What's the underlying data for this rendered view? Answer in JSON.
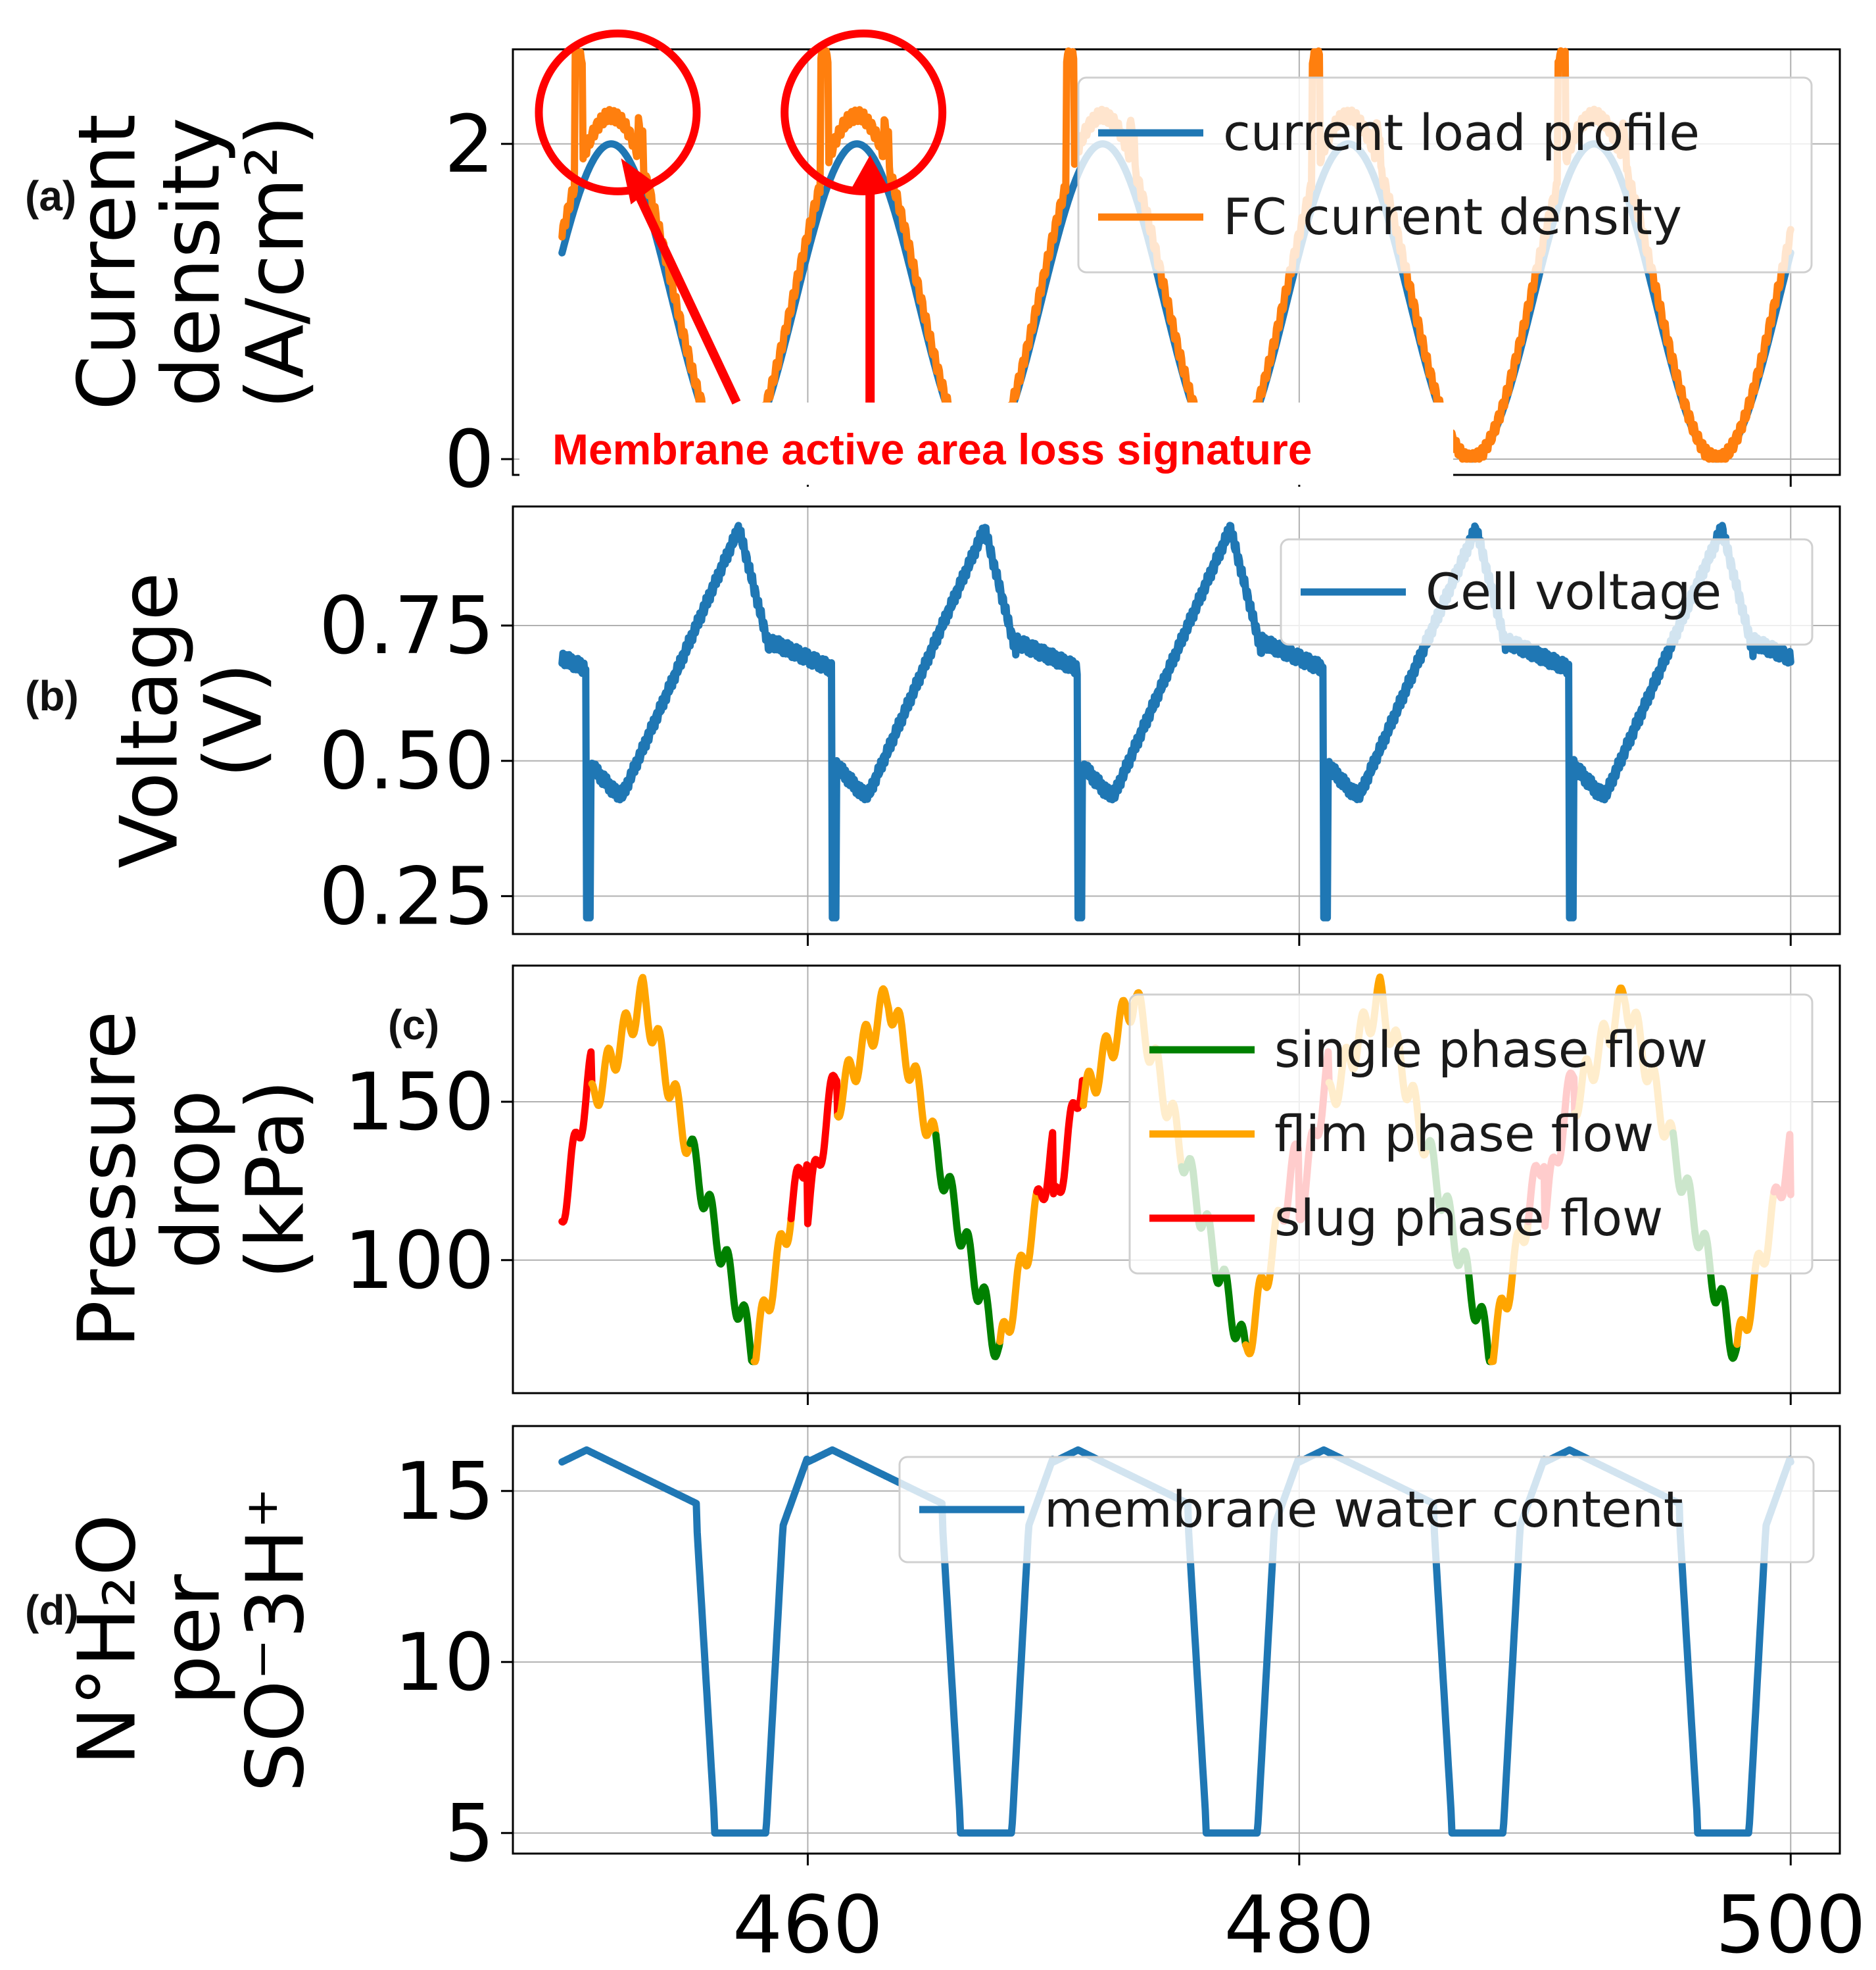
{
  "chart_data": [
    {
      "panel_label": "(a)",
      "type": "line",
      "ylabel": [
        "Current",
        "density",
        "(A/cm²)"
      ],
      "xlim": [
        448,
        502
      ],
      "ylim": [
        -0.1,
        2.6
      ],
      "yticks": [
        0,
        2
      ],
      "ytick_labels": [
        "0",
        "2"
      ],
      "legend_position": "upper right",
      "series": [
        {
          "name": "current load profile",
          "color": "#1f77b4",
          "model": "sinusoid",
          "period_s": 10,
          "min": 0,
          "max": 2,
          "peaks_at": [
            452,
            462,
            472,
            482,
            492
          ]
        },
        {
          "name": "FC current density",
          "color": "#ff7f0e",
          "model": "sinusoid-with-overshoot",
          "period_s": 10,
          "min": 0,
          "max": 2.18,
          "spike_max": 2.55
        }
      ],
      "annotation": {
        "text": "Membrane active area loss signature",
        "color": "#ff0000",
        "circled_peaks_x": [
          452,
          462
        ]
      }
    },
    {
      "panel_label": "(b)",
      "type": "line",
      "ylabel": [
        "Voltage",
        "(V)"
      ],
      "xlim": [
        448,
        502
      ],
      "ylim": [
        0.18,
        0.97
      ],
      "yticks": [
        0.25,
        0.5,
        0.75
      ],
      "ytick_labels": [
        "0.25",
        "0.50",
        "0.75"
      ],
      "legend_position": "upper right",
      "series": [
        {
          "name": "Cell voltage",
          "color": "#1f77b4",
          "max": 0.93,
          "min_typical": 0.44,
          "dip": 0.21,
          "dip_x": [
            451,
            461,
            471,
            481,
            491
          ]
        }
      ]
    },
    {
      "panel_label": "(c)",
      "type": "line",
      "ylabel": [
        "Pressure",
        "drop",
        "(kPa)"
      ],
      "xlim": [
        448,
        502
      ],
      "ylim": [
        58,
        193
      ],
      "yticks": [
        100,
        150
      ],
      "ytick_labels": [
        "100",
        "150"
      ],
      "legend_position": "upper right",
      "series": [
        {
          "name": "single phase flow",
          "color": "#008000"
        },
        {
          "name": "flim phase flow",
          "color": "#ffa500"
        },
        {
          "name": "slug phase flow",
          "color": "#ff0000"
        }
      ],
      "range_kpa": [
        68,
        190
      ]
    },
    {
      "panel_label": "(d)",
      "type": "line",
      "ylabel": [
        "N°H₂O",
        "per",
        "SO⁻3H⁺"
      ],
      "xlim": [
        448,
        502
      ],
      "ylim": [
        4.4,
        16.9
      ],
      "yticks": [
        5,
        10,
        15
      ],
      "ytick_labels": [
        "5",
        "10",
        "15"
      ],
      "xticks": [
        460,
        480,
        500
      ],
      "xtick_labels": [
        "460",
        "480",
        "500"
      ],
      "legend_position": "upper right",
      "series": [
        {
          "name": "membrane water content",
          "color": "#1f77b4",
          "high": 16.2,
          "low": 5
        }
      ]
    }
  ]
}
